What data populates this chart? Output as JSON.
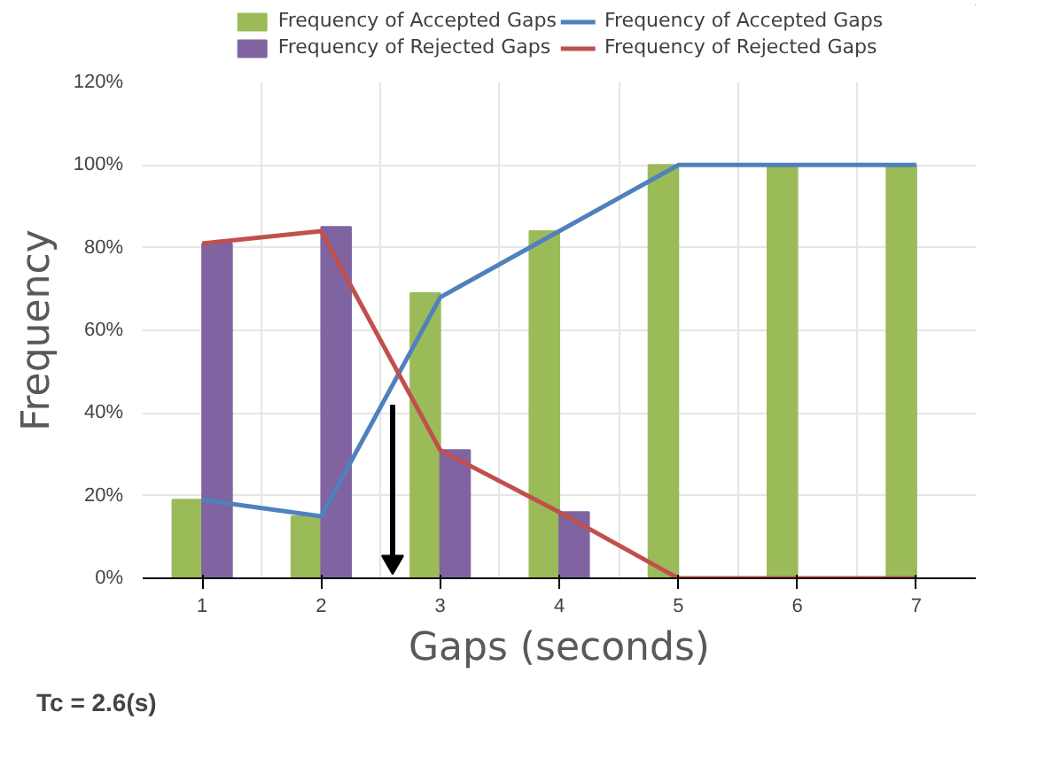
{
  "chart_data": {
    "type": "bar",
    "xlabel": "Gaps (seconds)",
    "ylabel": "Frequency",
    "categories": [
      "1",
      "2",
      "3",
      "4",
      "5",
      "6",
      "7"
    ],
    "series": [
      {
        "name": "Frequency of Accepted Gaps",
        "color": "#9bbb59",
        "values": [
          19,
          15,
          69,
          84,
          100,
          100,
          100
        ]
      },
      {
        "name": "Frequency of Rejected Gaps",
        "color": "#8064a2",
        "values": [
          81,
          85,
          31,
          16,
          0,
          0,
          0
        ]
      },
      {
        "name": "Frequency of Accepted Gaps",
        "type": "line",
        "color": "#4f81bd",
        "values": [
          19,
          15,
          68,
          84,
          100,
          100,
          100
        ]
      },
      {
        "name": "Frequency of Rejected Gaps",
        "type": "line",
        "color": "#c0504d",
        "values": [
          81,
          84,
          31,
          16,
          0,
          0,
          0
        ]
      }
    ],
    "ylim": [
      0,
      120
    ],
    "yticks": [
      {
        "value": 0,
        "label": "0%"
      },
      {
        "value": 20,
        "label": "20%"
      },
      {
        "value": 40,
        "label": "40%"
      },
      {
        "value": 60,
        "label": "60%"
      },
      {
        "value": 80,
        "label": "80%"
      },
      {
        "value": 100,
        "label": "100%"
      },
      {
        "value": 120,
        "label": "120%"
      }
    ],
    "grid": true,
    "legend": "top",
    "marker": "none",
    "line_style": "solid",
    "annotations": [
      "Tc = 2.6(s)"
    ]
  }
}
